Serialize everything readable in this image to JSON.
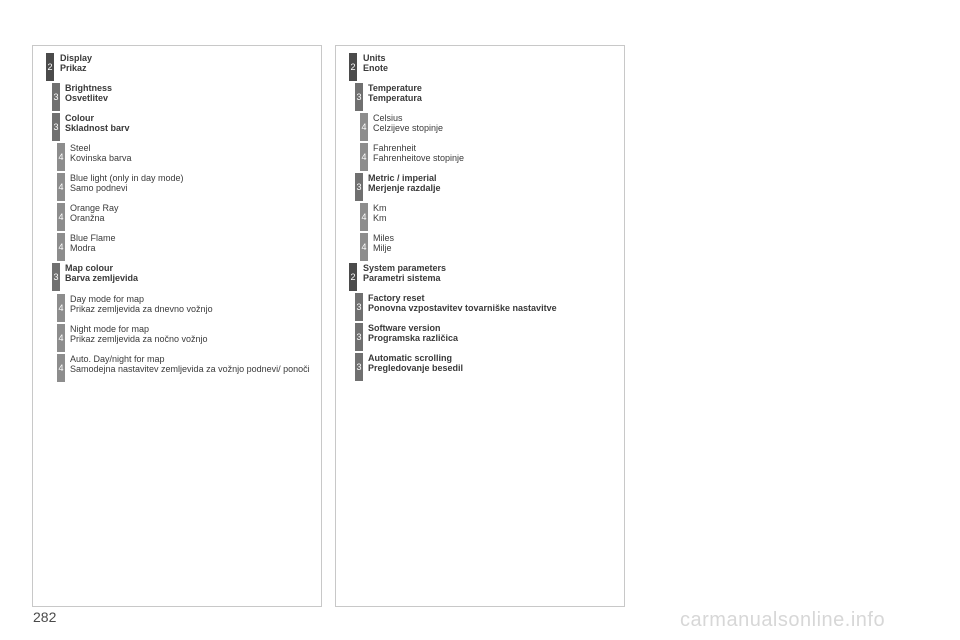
{
  "left_column": [
    {
      "level": "2",
      "line1": "Display",
      "line2": "Prikaz",
      "bold": true
    },
    {
      "level": "3",
      "line1": "Brightness",
      "line2": "Osvetlitev",
      "bold": true
    },
    {
      "level": "3",
      "line1": "Colour",
      "line2": "Skladnost barv",
      "bold": true
    },
    {
      "level": "4",
      "line1": "Steel",
      "line2": "Kovinska barva",
      "bold": false
    },
    {
      "level": "4",
      "line1": "Blue light (only in day mode)",
      "line2": "Samo podnevi",
      "bold": false
    },
    {
      "level": "4",
      "line1": "Orange Ray",
      "line2": "Oranžna",
      "bold": false
    },
    {
      "level": "4",
      "line1": "Blue Flame",
      "line2": "Modra",
      "bold": false
    },
    {
      "level": "3",
      "line1": "Map colour",
      "line2": "Barva zemljevida",
      "bold": true
    },
    {
      "level": "4",
      "line1": "Day mode for map",
      "line2": "Prikaz zemljevida za dnevno vožnjo",
      "bold": false
    },
    {
      "level": "4",
      "line1": "Night mode for map",
      "line2": "Prikaz zemljevida za nočno vožnjo",
      "bold": false
    },
    {
      "level": "4",
      "line1": "Auto. Day/night for map",
      "line2": "Samodejna nastavitev zemljevida za vožnjo podnevi/ ponoči",
      "bold": false
    }
  ],
  "right_column": [
    {
      "level": "2",
      "line1": "Units",
      "line2": "Enote",
      "bold": true
    },
    {
      "level": "3",
      "line1": "Temperature",
      "line2": "Temperatura",
      "bold": true
    },
    {
      "level": "4",
      "line1": "Celsius",
      "line2": "Celzijeve stopinje",
      "bold": false
    },
    {
      "level": "4",
      "line1": "Fahrenheit",
      "line2": "Fahrenheitove stopinje",
      "bold": false
    },
    {
      "level": "3",
      "line1": "Metric / imperial",
      "line2": "Merjenje razdalje",
      "bold": true
    },
    {
      "level": "4",
      "line1": "Km",
      "line2": "Km",
      "bold": false
    },
    {
      "level": "4",
      "line1": "Miles",
      "line2": "Milje",
      "bold": false
    },
    {
      "level": "2",
      "line1": "System parameters",
      "line2": "Parametri sistema",
      "bold": true
    },
    {
      "level": "3",
      "line1": "Factory reset",
      "line2": "Ponovna vzpostavitev tovarniške nastavitve",
      "bold": true
    },
    {
      "level": "3",
      "line1": "Software version",
      "line2": "Programska različica",
      "bold": true
    },
    {
      "level": "3",
      "line1": "Automatic scrolling",
      "line2": "Pregledovanje besedil",
      "bold": true
    }
  ],
  "footer": {
    "page_number": "282",
    "watermark": "carmanualsonline.info"
  }
}
